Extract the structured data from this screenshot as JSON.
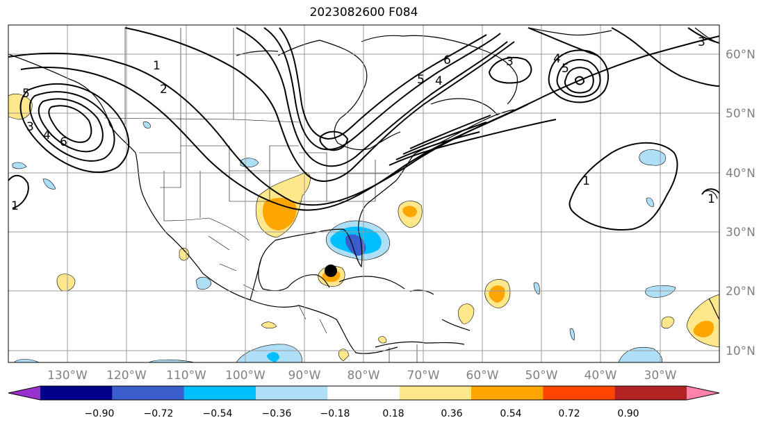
{
  "title": "2023082600 F084",
  "map": {
    "lon_ticks": [
      "130°W",
      "120°W",
      "110°W",
      "100°W",
      "90°W",
      "80°W",
      "70°W",
      "60°W",
      "50°W",
      "40°W",
      "30°W"
    ],
    "lat_ticks": [
      "60°N",
      "50°N",
      "40°N",
      "30°N",
      "20°N",
      "10°N"
    ],
    "contour_labels": [
      "1",
      "2",
      "3",
      "4",
      "5",
      "6",
      "3",
      "4",
      "5",
      "6",
      "5",
      "4",
      "3",
      "1",
      "1",
      "1"
    ],
    "marker": "storm-center-dot"
  },
  "colorbar": {
    "colors": [
      "#9932cc",
      "#00008b",
      "#3a5fcd",
      "#00bfff",
      "#aedff7",
      "#ffffff",
      "#ffe88c",
      "#ffa500",
      "#ff4500",
      "#b22222",
      "#ff82ab"
    ],
    "ticks": [
      "−0.90",
      "−0.72",
      "−0.54",
      "−0.36",
      "−0.18",
      "0.18",
      "0.36",
      "0.54",
      "0.72",
      "0.90"
    ]
  }
}
